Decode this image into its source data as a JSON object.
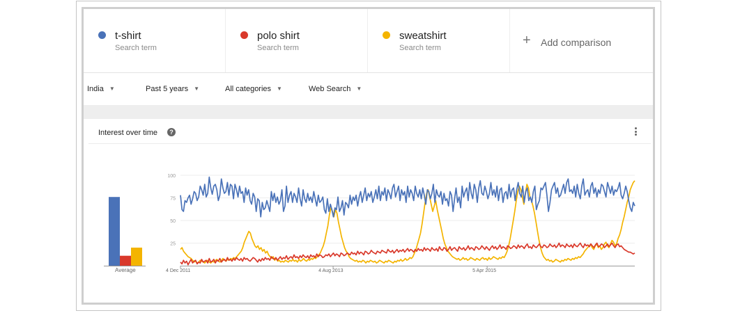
{
  "terms": [
    {
      "name": "t-shirt",
      "sub": "Search term",
      "color": "#4a72b8"
    },
    {
      "name": "polo shirt",
      "sub": "Search term",
      "color": "#d9392b"
    },
    {
      "name": "sweatshirt",
      "sub": "Search term",
      "color": "#f4b400"
    }
  ],
  "add_comparison": {
    "label": "Add comparison",
    "icon": "plus-icon"
  },
  "filters": [
    {
      "label": "India",
      "icon": "caret-down-icon"
    },
    {
      "label": "Past 5 years",
      "icon": "caret-down-icon"
    },
    {
      "label": "All categories",
      "icon": "caret-down-icon"
    },
    {
      "label": "Web Search",
      "icon": "caret-down-icon"
    }
  ],
  "panel": {
    "title": "Interest over time",
    "help_icon": "help-icon",
    "menu_icon": "more-vert-icon",
    "average_label": "Average"
  },
  "chart_data": [
    {
      "type": "bar",
      "categories": [
        "Average"
      ],
      "series": [
        {
          "name": "t-shirt",
          "values": [
            76
          ],
          "color": "#4a72b8"
        },
        {
          "name": "polo shirt",
          "values": [
            11
          ],
          "color": "#d9392b"
        },
        {
          "name": "sweatshirt",
          "values": [
            20
          ],
          "color": "#f4b400"
        }
      ],
      "ylim": [
        0,
        100
      ]
    },
    {
      "type": "line",
      "x_tick_labels": [
        "4 Dec 2011",
        "4 Aug 2013",
        "5 Apr 2015"
      ],
      "y_ticks": [
        25,
        50,
        75,
        100
      ],
      "ylim": [
        0,
        100
      ],
      "grid": true,
      "series": [
        {
          "name": "t-shirt",
          "color": "#4a72b8",
          "values": [
            78,
            62,
            60,
            72,
            70,
            75,
            78,
            68,
            74,
            82,
            80,
            72,
            76,
            88,
            84,
            78,
            90,
            76,
            80,
            98,
            86,
            79,
            88,
            90,
            84,
            72,
            78,
            96,
            86,
            80,
            82,
            92,
            78,
            90,
            88,
            74,
            90,
            84,
            76,
            88,
            80,
            82,
            70,
            86,
            78,
            84,
            72,
            68,
            80,
            76,
            60,
            74,
            72,
            54,
            70,
            62,
            64,
            72,
            66,
            60,
            82,
            72,
            80,
            70,
            76,
            68,
            72,
            84,
            60,
            66,
            88,
            70,
            78,
            82,
            70,
            80,
            76,
            70,
            86,
            74,
            66,
            84,
            74,
            70,
            80,
            72,
            76,
            70,
            82,
            74,
            66,
            78,
            70,
            72,
            76,
            62,
            58,
            74,
            60,
            68,
            62,
            54,
            64,
            62,
            76,
            60,
            64,
            72,
            56,
            70,
            68,
            64,
            78,
            68,
            76,
            72,
            78,
            66,
            76,
            82,
            70,
            78,
            86,
            72,
            80,
            76,
            82,
            70,
            76,
            84,
            74,
            88,
            72,
            82,
            78,
            86,
            72,
            84,
            80,
            74,
            86,
            90,
            76,
            82,
            88,
            72,
            84,
            78,
            82,
            70,
            88,
            76,
            84,
            80,
            72,
            88,
            80,
            76,
            84,
            74,
            86,
            78,
            68,
            84,
            82,
            74,
            80,
            90,
            70,
            84,
            78,
            76,
            82,
            68,
            80,
            72,
            74,
            66,
            82,
            78,
            60,
            74,
            86,
            70,
            76,
            64,
            88,
            76,
            82,
            86,
            72,
            92,
            80,
            74,
            90,
            84,
            70,
            86,
            94,
            80,
            78,
            88,
            82,
            74,
            80,
            92,
            78,
            84,
            76,
            88,
            72,
            84,
            86,
            70,
            80,
            82,
            74,
            90,
            76,
            84,
            86,
            72,
            84,
            92,
            80,
            76,
            88,
            70,
            82,
            86,
            72,
            76,
            70,
            82,
            88,
            62,
            68,
            72,
            86,
            84,
            88,
            92,
            78,
            60,
            70,
            84,
            88,
            92,
            80,
            86,
            76,
            78,
            84,
            90,
            80,
            92,
            96,
            82,
            84,
            80,
            88,
            76,
            90,
            80,
            74,
            88,
            96,
            78,
            82,
            84,
            76,
            88,
            92,
            80,
            86,
            76,
            84,
            80,
            90,
            88,
            82,
            76,
            92,
            86,
            80,
            88,
            78,
            84,
            82,
            86,
            92,
            78,
            74,
            80,
            88,
            82,
            72,
            64,
            60,
            70,
            66
          ]
        },
        {
          "name": "polo shirt",
          "color": "#d9392b",
          "values": [
            4,
            2,
            6,
            3,
            5,
            1,
            4,
            7,
            3,
            5,
            6,
            2,
            4,
            3,
            7,
            4,
            5,
            6,
            3,
            8,
            4,
            5,
            7,
            3,
            6,
            5,
            8,
            4,
            6,
            7,
            5,
            9,
            6,
            7,
            5,
            8,
            6,
            9,
            7,
            6,
            8,
            5,
            9,
            7,
            8,
            6,
            5,
            7,
            9,
            8,
            6,
            4,
            7,
            5,
            8,
            6,
            9,
            7,
            8,
            6,
            10,
            8,
            7,
            9,
            6,
            8,
            10,
            7,
            9,
            8,
            11,
            7,
            9,
            10,
            8,
            12,
            9,
            10,
            8,
            11,
            9,
            12,
            10,
            9,
            11,
            8,
            12,
            10,
            11,
            9,
            13,
            10,
            12,
            11,
            9,
            10,
            12,
            11,
            13,
            10,
            12,
            14,
            11,
            13,
            12,
            10,
            14,
            13,
            11,
            12,
            14,
            13,
            12,
            15,
            13,
            14,
            12,
            16,
            13,
            15,
            14,
            12,
            16,
            15,
            13,
            14,
            17,
            15,
            14,
            13,
            16,
            15,
            14,
            17,
            16,
            15,
            14,
            18,
            16,
            15,
            17,
            14,
            16,
            18,
            15,
            17,
            16,
            18,
            15,
            17,
            19,
            16,
            18,
            17,
            15,
            18,
            16,
            19,
            17,
            18,
            16,
            20,
            17,
            19,
            18,
            16,
            20,
            18,
            17,
            19,
            16,
            21,
            18,
            17,
            20,
            19,
            16,
            18,
            21,
            17,
            19,
            20,
            18,
            16,
            21,
            19,
            18,
            20,
            17,
            19,
            22,
            18,
            20,
            19,
            17,
            21,
            20,
            18,
            19,
            22,
            20,
            18,
            21,
            19,
            17,
            20,
            22,
            19,
            21,
            18,
            20,
            23,
            19,
            21,
            20,
            18,
            22,
            21,
            19,
            20,
            22,
            21,
            19,
            23,
            20,
            22,
            21,
            19,
            22,
            24,
            20,
            21,
            19,
            23,
            21,
            20,
            22,
            24,
            21,
            20,
            23,
            22,
            20,
            21,
            24,
            22,
            21,
            23,
            20,
            22,
            25,
            21,
            23,
            22,
            20,
            24,
            22,
            21,
            23,
            20,
            24,
            22,
            21,
            23,
            25,
            22,
            20,
            24,
            22,
            23,
            21,
            24,
            22,
            20,
            23,
            25,
            21,
            22,
            24,
            23,
            20,
            22,
            24,
            21,
            23,
            25,
            22,
            20,
            23,
            24,
            21,
            22,
            20,
            18,
            17,
            16,
            15,
            15,
            14,
            13,
            14
          ]
        },
        {
          "name": "sweatshirt",
          "color": "#f4b400",
          "values": [
            18,
            20,
            16,
            14,
            12,
            10,
            9,
            8,
            6,
            4,
            5,
            3,
            4,
            6,
            5,
            4,
            3,
            5,
            6,
            4,
            3,
            5,
            4,
            6,
            7,
            5,
            4,
            6,
            8,
            6,
            5,
            7,
            6,
            8,
            7,
            9,
            8,
            10,
            12,
            14,
            16,
            20,
            26,
            30,
            34,
            38,
            36,
            30,
            26,
            22,
            20,
            22,
            18,
            20,
            16,
            18,
            14,
            16,
            12,
            10,
            8,
            10,
            6,
            8,
            5,
            6,
            4,
            5,
            4,
            6,
            5,
            4,
            6,
            5,
            7,
            5,
            6,
            4,
            7,
            5,
            6,
            8,
            6,
            5,
            7,
            6,
            8,
            7,
            9,
            8,
            10,
            12,
            14,
            18,
            22,
            28,
            36,
            44,
            56,
            64,
            60,
            54,
            62,
            58,
            48,
            40,
            32,
            26,
            20,
            16,
            14,
            10,
            8,
            7,
            6,
            5,
            6,
            4,
            5,
            4,
            6,
            5,
            3,
            5,
            4,
            6,
            5,
            4,
            5,
            3,
            4,
            6,
            5,
            4,
            3,
            5,
            4,
            6,
            5,
            4,
            3,
            5,
            4,
            6,
            5,
            7,
            5,
            6,
            8,
            6,
            7,
            9,
            8,
            10,
            14,
            18,
            24,
            30,
            36,
            46,
            58,
            70,
            80,
            84,
            76,
            68,
            60,
            66,
            72,
            62,
            54,
            46,
            38,
            30,
            24,
            20,
            16,
            14,
            12,
            10,
            9,
            8,
            7,
            8,
            6,
            7,
            9,
            7,
            8,
            6,
            7,
            9,
            8,
            7,
            6,
            8,
            7,
            6,
            8,
            9,
            7,
            8,
            6,
            9,
            7,
            8,
            10,
            9,
            8,
            7,
            9,
            8,
            10,
            9,
            12,
            16,
            22,
            30,
            40,
            50,
            60,
            72,
            82,
            88,
            84,
            76,
            68,
            80,
            90,
            86,
            76,
            72,
            66,
            58,
            48,
            38,
            28,
            20,
            14,
            10,
            8,
            6,
            7,
            5,
            6,
            4,
            5,
            7,
            6,
            5,
            4,
            6,
            5,
            7,
            6,
            8,
            7,
            6,
            8,
            7,
            9,
            8,
            10,
            9,
            11,
            13,
            16,
            18,
            20,
            22,
            24,
            20,
            18,
            22,
            24,
            20,
            22,
            18,
            20,
            24,
            26,
            22,
            20,
            24,
            28,
            26,
            22,
            24,
            30,
            34,
            40,
            48,
            54,
            62,
            70,
            76,
            84,
            88,
            92,
            94
          ]
        }
      ]
    }
  ]
}
